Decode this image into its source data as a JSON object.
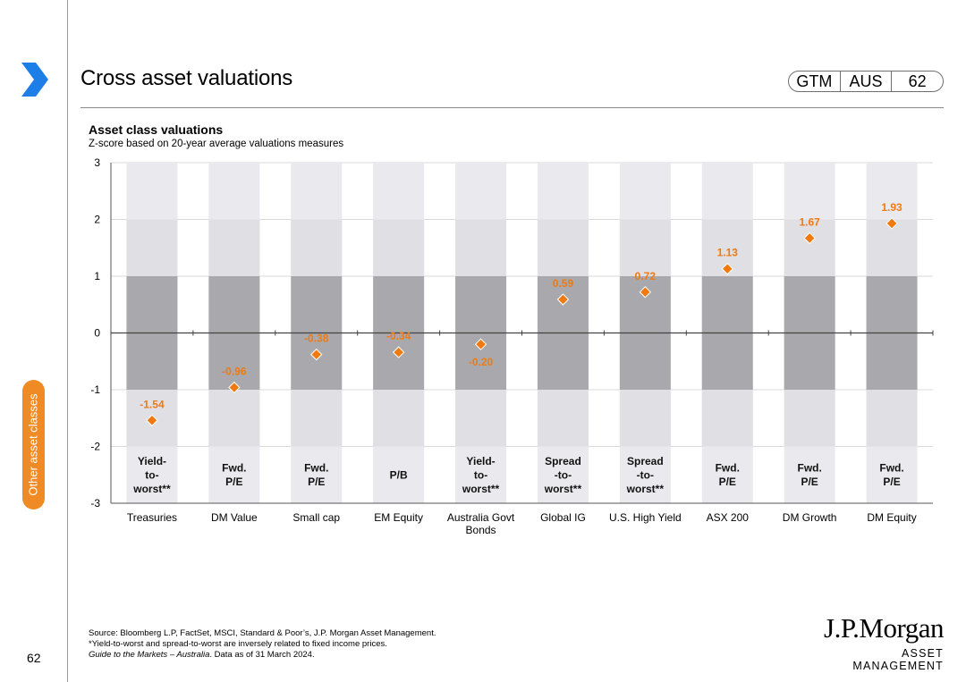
{
  "header": {
    "title": "Cross asset valuations",
    "badge": [
      "GTM",
      "AUS",
      "62"
    ],
    "side_tab": "Other asset classes"
  },
  "colors": {
    "accent": "#f08a24",
    "marker": "#f07a10",
    "outer_band": "#eaeaee",
    "inner_band": "#a9a8ac",
    "hi_band": "#e0dfe3"
  },
  "chart_data": {
    "type": "scatter",
    "title": "Asset class valuations",
    "subtitle": "Z-score based on 20-year average valuations measures",
    "ylim": [
      -3,
      3
    ],
    "yticks": [
      3,
      2,
      1,
      0,
      -1,
      -2,
      -3
    ],
    "categories": [
      "Treasuries",
      "DM Value",
      "Small cap",
      "EM Equity",
      "Australia Govt Bonds",
      "Global IG",
      "U.S. High Yield",
      "ASX 200",
      "DM Growth",
      "DM Equity"
    ],
    "category_lines": [
      [
        "Treasuries"
      ],
      [
        "DM Value"
      ],
      [
        "Small cap"
      ],
      [
        "EM Equity"
      ],
      [
        "Australia Govt",
        "Bonds"
      ],
      [
        "Global IG"
      ],
      [
        "U.S. High Yield"
      ],
      [
        "ASX 200"
      ],
      [
        "DM Growth"
      ],
      [
        "DM Equity"
      ]
    ],
    "values": [
      -1.54,
      -0.96,
      -0.38,
      -0.34,
      -0.2,
      0.59,
      0.72,
      1.13,
      1.67,
      1.93
    ],
    "value_labels": [
      "-1.54",
      "-0.96",
      "-0.38",
      "-0.34",
      "-0.20",
      "0.59",
      "0.72",
      "1.13",
      "1.67",
      "1.93"
    ],
    "label_position": [
      "above",
      "above",
      "above",
      "above",
      "below",
      "above",
      "above",
      "above",
      "above",
      "above"
    ],
    "measures": [
      [
        "Yield-",
        "to-",
        "worst**"
      ],
      [
        "Fwd.",
        "P/E"
      ],
      [
        "Fwd.",
        "P/E"
      ],
      [
        "P/B"
      ],
      [
        "Yield-",
        "to-",
        "worst**"
      ],
      [
        "Spread",
        "-to-",
        "worst**"
      ],
      [
        "Spread",
        "-to-",
        "worst**"
      ],
      [
        "Fwd.",
        "P/E"
      ],
      [
        "Fwd.",
        "P/E"
      ],
      [
        "Fwd.",
        "P/E"
      ]
    ],
    "bands": {
      "outer": [
        -3,
        3
      ],
      "inner": [
        -1,
        1
      ],
      "hi_from": 2
    }
  },
  "footer": {
    "source": "Source: Bloomberg L.P, FactSet, MSCI, Standard & Poor’s, J.P. Morgan Asset Management.",
    "note": "*Yield-to-worst and spread-to-worst are inversely related to fixed income prices.",
    "guide": "Guide to the Markets – Australia",
    "date": ". Data as of 31 March 2024.",
    "page_number": "62"
  },
  "logo": {
    "brand": "J.P.Morgan",
    "sub": "ASSET MANAGEMENT"
  }
}
